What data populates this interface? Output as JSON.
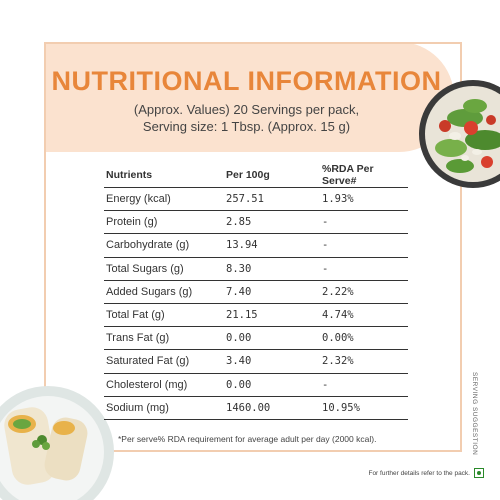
{
  "header": {
    "title": "NUTRITIONAL INFORMATION",
    "subtitle_line1": "(Approx. Values) 20 Servings per pack,",
    "subtitle_line2": "Serving size: 1 Tbsp. (Approx. 15 g)"
  },
  "table": {
    "headers": [
      "Nutrients",
      "Per 100g",
      "%RDA Per Serve#"
    ],
    "rows": [
      {
        "nutrient": "Energy (kcal)",
        "per100g": "257.51",
        "rda": "1.93%"
      },
      {
        "nutrient": "Protein (g)",
        "per100g": "2.85",
        "rda": "-"
      },
      {
        "nutrient": "Carbohydrate (g)",
        "per100g": "13.94",
        "rda": "-"
      },
      {
        "nutrient": "Total Sugars (g)",
        "per100g": "8.30",
        "rda": "-"
      },
      {
        "nutrient": "Added Sugars (g)",
        "per100g": "7.40",
        "rda": "2.22%"
      },
      {
        "nutrient": "Total Fat (g)",
        "per100g": "21.15",
        "rda": "4.74%"
      },
      {
        "nutrient": "Trans Fat (g)",
        "per100g": "0.00",
        "rda": "0.00%"
      },
      {
        "nutrient": "Saturated Fat (g)",
        "per100g": "3.40",
        "rda": "2.32%"
      },
      {
        "nutrient": "Cholesterol (mg)",
        "per100g": "0.00",
        "rda": "-"
      },
      {
        "nutrient": "Sodium (mg)",
        "per100g": "1460.00",
        "rda": "10.95%"
      }
    ]
  },
  "footnote": "*Per serve% RDA requirement for average adult per day (2000 kcal).",
  "bottom_note": "For further details refer to the pack.",
  "side_label": "SERVING SUGGESTION",
  "images": {
    "salad": "salad-bowl-image",
    "wraps": "wraps-plate-image"
  },
  "colors": {
    "title": "#e8863a",
    "band": "#fbe2cf",
    "border": "#f2cdb0",
    "veg_mark": "#2a8a2a"
  }
}
